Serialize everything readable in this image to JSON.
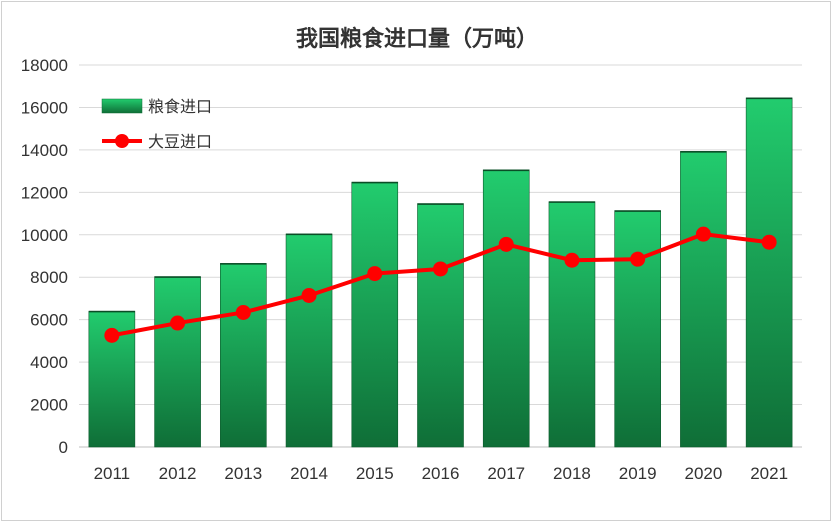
{
  "chart_data": {
    "type": "bar",
    "title": "我国粮食进口量（万吨）",
    "categories": [
      "2011",
      "2012",
      "2013",
      "2014",
      "2015",
      "2016",
      "2017",
      "2018",
      "2019",
      "2020",
      "2021"
    ],
    "series": [
      {
        "name": "粮食进口",
        "type": "bar",
        "values": [
          6400,
          8030,
          8650,
          10040,
          12480,
          11470,
          13060,
          11560,
          11140,
          13930,
          16450
        ]
      },
      {
        "name": "大豆进口",
        "type": "line",
        "values": [
          5260,
          5840,
          6340,
          7140,
          8170,
          8390,
          9550,
          8800,
          8850,
          10030,
          9650
        ]
      }
    ],
    "ylim": [
      0,
      18000
    ],
    "yticks": [
      "0",
      "2000",
      "4000",
      "6000",
      "8000",
      "10000",
      "12000",
      "14000",
      "16000",
      "18000"
    ],
    "grid": true,
    "legend": "top-left",
    "colors": {
      "bar_top": "#22cc6e",
      "bar_bottom": "#0f6e37",
      "line": "#ff0000",
      "grid": "#d9d9d9"
    }
  }
}
